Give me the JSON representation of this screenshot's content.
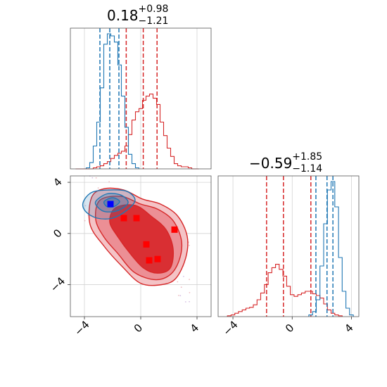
{
  "chart_data": [
    {
      "panel": "marginal-1",
      "type": "histogram",
      "title": {
        "median": "0.18",
        "plus": "+0.98",
        "minus": "−1.21"
      },
      "xlim": [
        -5,
        5
      ],
      "grid": true,
      "series": [
        {
          "color": "#d62728",
          "bin_centers": [
            -4.5,
            -4.25,
            -4.0,
            -3.75,
            -3.5,
            -3.25,
            -3.0,
            -2.75,
            -2.5,
            -2.25,
            -2.0,
            -1.75,
            -1.5,
            -1.25,
            -1.0,
            -0.75,
            -0.5,
            -0.25,
            0.0,
            0.25,
            0.5,
            0.75,
            1.0,
            1.25,
            1.5,
            1.75,
            2.0,
            2.25,
            2.5,
            2.75,
            3.0,
            3.25,
            3.5,
            3.75,
            4.0
          ],
          "counts": [
            0,
            0,
            0,
            0,
            0,
            1,
            2,
            3,
            5,
            7,
            10,
            13,
            15,
            17,
            22,
            33,
            47,
            55,
            58,
            66,
            70,
            72,
            68,
            62,
            45,
            32,
            20,
            12,
            5,
            3,
            2,
            2,
            1,
            0,
            0
          ],
          "quantile_lines": [
            -1.03,
            0.18,
            1.16
          ]
        },
        {
          "color": "#1f77b4",
          "bin_centers": [
            -3.75,
            -3.5,
            -3.25,
            -3.0,
            -2.75,
            -2.5,
            -2.25,
            -2.0,
            -1.75,
            -1.5,
            -1.25,
            -1.0,
            -0.75,
            -0.5,
            -0.25
          ],
          "counts": [
            1,
            6,
            22,
            45,
            78,
            120,
            130,
            128,
            122,
            100,
            70,
            40,
            14,
            5,
            1
          ],
          "quantile_lines": [
            -2.9,
            -2.2,
            -1.55
          ]
        }
      ]
    },
    {
      "panel": "marginal-2",
      "type": "histogram",
      "title": {
        "median": "−0.59",
        "plus": "+1.85",
        "minus": "−1.14"
      },
      "xlim": [
        -5,
        4.5
      ],
      "grid": true,
      "series": [
        {
          "color": "#d62728",
          "bin_centers": [
            -4.25,
            -4.0,
            -3.75,
            -3.5,
            -3.25,
            -3.0,
            -2.75,
            -2.5,
            -2.25,
            -2.0,
            -1.75,
            -1.5,
            -1.25,
            -1.0,
            -0.75,
            -0.5,
            -0.25,
            0.0,
            0.25,
            0.5,
            0.75,
            1.0,
            1.25,
            1.5,
            1.75,
            2.0,
            2.25,
            2.5,
            2.75,
            3.0,
            3.25
          ],
          "counts": [
            1,
            2,
            4,
            6,
            8,
            10,
            11,
            14,
            20,
            28,
            38,
            52,
            58,
            62,
            56,
            48,
            36,
            26,
            24,
            26,
            28,
            30,
            30,
            27,
            25,
            22,
            15,
            8,
            4,
            2,
            1
          ],
          "quantile_lines": [
            -1.73,
            -0.59,
            1.26
          ]
        },
        {
          "color": "#1f77b4",
          "bin_centers": [
            1.25,
            1.5,
            1.75,
            2.0,
            2.25,
            2.5,
            2.75,
            3.0,
            3.25,
            3.5,
            3.75,
            4.0
          ],
          "counts": [
            2,
            6,
            20,
            60,
            110,
            150,
            160,
            130,
            70,
            30,
            10,
            2
          ],
          "quantile_lines": [
            1.6,
            2.35,
            2.75
          ]
        }
      ]
    },
    {
      "panel": "joint",
      "type": "contour",
      "xlim": [
        -5,
        5
      ],
      "ylim": [
        -6.5,
        4.5
      ],
      "xticks": [
        "−4",
        "0",
        "4"
      ],
      "yticks": [
        "4",
        "0",
        "−4"
      ],
      "xtick_values": [
        -4,
        0,
        4
      ],
      "ytick_values": [
        4,
        0,
        -4
      ],
      "grid": true,
      "red_contours": [
        {
          "level": "outer",
          "points": [
            [
              -3.5,
              2.8
            ],
            [
              -2.6,
              3.5
            ],
            [
              -1.2,
              3.4
            ],
            [
              0.1,
              2.7
            ],
            [
              1.4,
              2.3
            ],
            [
              2.6,
              1.4
            ],
            [
              3.3,
              -0.2
            ],
            [
              3.2,
              -1.9
            ],
            [
              2.5,
              -3.5
            ],
            [
              1.5,
              -4.0
            ],
            [
              0.0,
              -3.9
            ],
            [
              -1.3,
              -2.6
            ],
            [
              -2.6,
              -1.0
            ],
            [
              -3.6,
              0.7
            ]
          ]
        },
        {
          "level": "middle",
          "points": [
            [
              -2.9,
              2.6
            ],
            [
              -1.4,
              2.9
            ],
            [
              0.0,
              2.3
            ],
            [
              1.2,
              1.9
            ],
            [
              2.3,
              1.0
            ],
            [
              2.9,
              -0.6
            ],
            [
              2.7,
              -2.2
            ],
            [
              2.0,
              -3.3
            ],
            [
              0.9,
              -3.6
            ],
            [
              -0.5,
              -3.0
            ],
            [
              -1.6,
              -1.6
            ],
            [
              -2.6,
              -0.3
            ],
            [
              -3.2,
              1.1
            ]
          ]
        },
        {
          "level": "inner",
          "points": [
            [
              -1.8,
              2.0
            ],
            [
              -0.4,
              2.2
            ],
            [
              0.8,
              1.3
            ],
            [
              1.8,
              0.3
            ],
            [
              2.3,
              -1.2
            ],
            [
              2.1,
              -2.7
            ],
            [
              1.2,
              -3.1
            ],
            [
              0.2,
              -2.7
            ],
            [
              -0.8,
              -1.5
            ],
            [
              -1.6,
              -0.3
            ],
            [
              -2.2,
              0.9
            ]
          ]
        }
      ],
      "blue_contours": [
        {
          "level": "outer",
          "points": [
            [
              -4.1,
              2.4
            ],
            [
              -3.5,
              3.2
            ],
            [
              -2.3,
              3.4
            ],
            [
              -1.0,
              3.3
            ],
            [
              -0.4,
              2.6
            ],
            [
              -1.0,
              1.8
            ],
            [
              -2.0,
              1.2
            ],
            [
              -3.1,
              1.2
            ],
            [
              -3.9,
              1.7
            ]
          ]
        },
        {
          "level": "middle",
          "points": [
            [
              -3.2,
              2.5
            ],
            [
              -2.4,
              3.1
            ],
            [
              -1.4,
              3.0
            ],
            [
              -0.9,
              2.4
            ],
            [
              -1.6,
              1.8
            ],
            [
              -2.5,
              1.7
            ],
            [
              -3.0,
              2.0
            ]
          ]
        },
        {
          "level": "inner",
          "points": [
            [
              -2.6,
              2.5
            ],
            [
              -2.0,
              2.8
            ],
            [
              -1.5,
              2.5
            ],
            [
              -1.9,
              2.1
            ],
            [
              -2.4,
              2.1
            ]
          ]
        }
      ],
      "markers": [
        {
          "color": "#0000ff",
          "points": [
            [
              -2.15,
              2.3
            ]
          ]
        },
        {
          "color": "#ff0000",
          "points": [
            [
              -1.2,
              1.2
            ],
            [
              -0.3,
              1.2
            ],
            [
              0.4,
              -0.85
            ],
            [
              0.6,
              -2.1
            ],
            [
              1.2,
              -2.0
            ],
            [
              2.4,
              0.3
            ]
          ]
        }
      ]
    }
  ]
}
